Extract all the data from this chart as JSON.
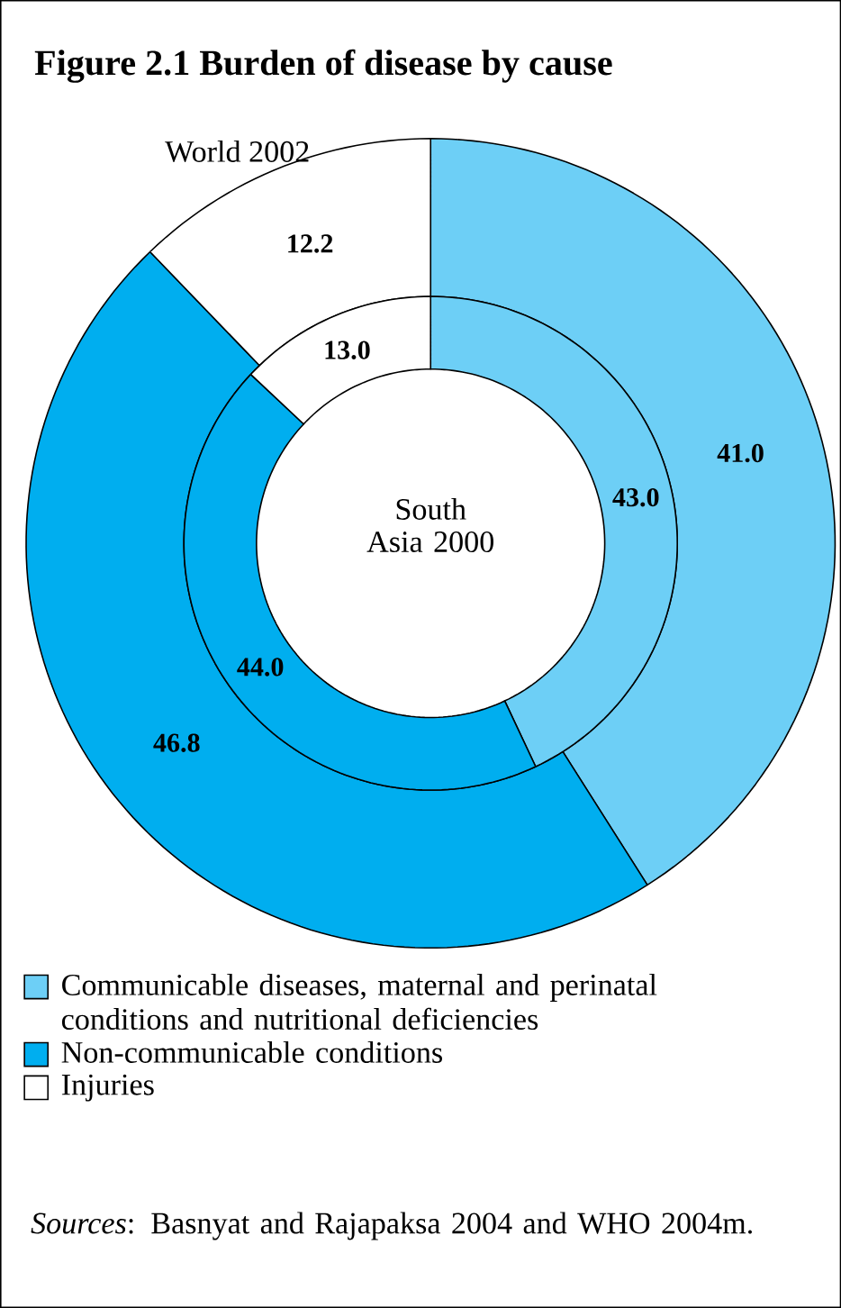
{
  "chart_data": {
    "type": "donut",
    "title": "Figure 2.1 Burden of disease by cause",
    "categories": [
      "Communicable diseases, maternal and perinatal conditions and nutritional deficiencies",
      "Non-communicable conditions",
      "Injuries"
    ],
    "colors": [
      "#6dcff6",
      "#00aeef",
      "#ffffff"
    ],
    "series": [
      {
        "name": "World 2002",
        "values": [
          41.0,
          46.8,
          12.2
        ],
        "value_labels": [
          "41.0",
          "46.8",
          "12.2"
        ]
      },
      {
        "name": "South Asia 2000",
        "values": [
          43.0,
          44.0,
          13.0
        ],
        "value_labels": [
          "43.0",
          "44.0",
          "13.0"
        ]
      }
    ],
    "legend": "bottom",
    "annotations": [
      "*Sources*: Basnyat and Rajapaksa 2004 and WHO 2004m."
    ]
  }
}
